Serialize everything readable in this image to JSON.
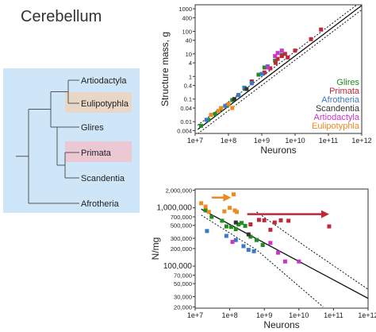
{
  "title": "Cerebellum",
  "tree": {
    "panel_color": "#cfe6f8",
    "taxa": [
      {
        "label": "Artiodactyla",
        "highlight": ""
      },
      {
        "label": "Eulipotyphla",
        "highlight": "#e8d6c6"
      },
      {
        "label": "Glires",
        "highlight": ""
      },
      {
        "label": "Primata",
        "highlight": "#ecc8d3"
      },
      {
        "label": "Scandentia",
        "highlight": ""
      },
      {
        "label": "Afrotheria",
        "highlight": ""
      }
    ]
  },
  "chart_data": [
    {
      "type": "scatter",
      "xlabel": "Neurons",
      "ylabel": "Structure mass, g",
      "x_scale": "log",
      "y_scale": "log",
      "xlim": [
        10000000.0,
        1000000000000.0
      ],
      "ylim": [
        0.003,
        1500
      ],
      "x_ticks": [
        {
          "value": 10000000.0,
          "label": "1e+7"
        },
        {
          "value": 100000000.0,
          "label": "1e+8"
        },
        {
          "value": 1000000000.0,
          "label": "1e+9"
        },
        {
          "value": 10000000000.0,
          "label": "1e+10"
        },
        {
          "value": 100000000000.0,
          "label": "1e+11"
        },
        {
          "value": 1000000000000.0,
          "label": "1e+12"
        }
      ],
      "y_ticks": [
        {
          "value": 1000,
          "label": "1000"
        },
        {
          "value": 400,
          "label": "400"
        },
        {
          "value": 100,
          "label": "100"
        },
        {
          "value": 40,
          "label": "40"
        },
        {
          "value": 10,
          "label": "10"
        },
        {
          "value": 4,
          "label": "4"
        },
        {
          "value": 1,
          "label": "1"
        },
        {
          "value": 0.4,
          "label": "0.4"
        },
        {
          "value": 0.1,
          "label": "0.1"
        },
        {
          "value": 0.04,
          "label": "0.04"
        },
        {
          "value": 0.01,
          "label": "0.01"
        },
        {
          "value": 0.004,
          "label": "0.004"
        }
      ],
      "legend_position": "right",
      "fit": {
        "points": [
          [
            12000000.0,
            0.0045
          ],
          [
            1000000000000.0,
            1400
          ]
        ],
        "band_offset_factor": 1.55
      },
      "series": [
        {
          "name": "Glires",
          "color": "#1e8e1e",
          "points": [
            [
              15000000.0,
              0.0065
            ],
            [
              25000000.0,
              0.012
            ],
            [
              40000000.0,
              0.022
            ],
            [
              60000000.0,
              0.035
            ],
            [
              90000000.0,
              0.05
            ],
            [
              130000000.0,
              0.09
            ],
            [
              200000000.0,
              0.15
            ],
            [
              300000000.0,
              0.3
            ],
            [
              500000000.0,
              0.6
            ],
            [
              800000000.0,
              1.2
            ],
            [
              1200000000.0,
              2.5
            ],
            [
              2500000000.0,
              5
            ],
            [
              4000000000.0,
              9
            ]
          ]
        },
        {
          "name": "Primata",
          "color": "#c0283a",
          "points": [
            [
              500000000.0,
              0.6
            ],
            [
              1200000000.0,
              1.5
            ],
            [
              1800000000.0,
              2.3
            ],
            [
              2600000000.0,
              4
            ],
            [
              3000000000.0,
              6
            ],
            [
              4000000000.0,
              8
            ],
            [
              5000000000.0,
              10
            ],
            [
              6000000000.0,
              7
            ],
            [
              10000000000.0,
              14
            ],
            [
              30000000000.0,
              45
            ],
            [
              60000000000.0,
              120
            ]
          ]
        },
        {
          "name": "Afrotheria",
          "color": "#3a78c8",
          "points": [
            [
              22000000.0,
              0.012
            ],
            [
              80000000.0,
              0.05
            ],
            [
              200000000.0,
              0.15
            ],
            [
              300000000.0,
              0.32
            ],
            [
              500000000.0,
              0.5
            ],
            [
              1000000000.0,
              1.3
            ],
            [
              1500000000.0,
              2.8
            ]
          ]
        },
        {
          "name": "Scandentia",
          "color": "#333333",
          "points": [
            [
              150000000.0,
              0.1
            ],
            [
              350000000.0,
              0.28
            ]
          ]
        },
        {
          "name": "Artiodactyla",
          "color": "#cc33cc",
          "points": [
            [
              1500000000.0,
              2.5
            ],
            [
              2500000000.0,
              8
            ],
            [
              3000000000.0,
              11
            ],
            [
              4000000000.0,
              14
            ]
          ]
        },
        {
          "name": "Eulipotyphla",
          "color": "#ee8a22",
          "points": [
            [
              30000000.0,
              0.02
            ],
            [
              50000000.0,
              0.03
            ],
            [
              60000000.0,
              0.04
            ],
            [
              100000000.0,
              0.06
            ],
            [
              130000000.0,
              0.04
            ]
          ]
        }
      ]
    },
    {
      "type": "scatter",
      "xlabel": "Neurons",
      "ylabel": "N/mg",
      "x_scale": "log",
      "y_scale": "log",
      "xlim": [
        10000000.0,
        1000000000000.0
      ],
      "ylim": [
        19000,
        2100000
      ],
      "x_ticks": [
        {
          "value": 10000000.0,
          "label": "1e+7"
        },
        {
          "value": 100000000.0,
          "label": "1e+8"
        },
        {
          "value": 1000000000.0,
          "label": "1e+9"
        },
        {
          "value": 10000000000.0,
          "label": "1e+10"
        },
        {
          "value": 100000000000.0,
          "label": "1e+11"
        },
        {
          "value": 1000000000000.0,
          "label": "1e+12"
        }
      ],
      "y_ticks": [
        {
          "value": 2000000,
          "label": "2,000,000",
          "big": false
        },
        {
          "value": 1000000,
          "label": "1,000,000",
          "big": true
        },
        {
          "value": 700000,
          "label": "700,000",
          "big": false
        },
        {
          "value": 500000,
          "label": "500,000",
          "big": false
        },
        {
          "value": 300000,
          "label": "300,000",
          "big": false
        },
        {
          "value": 200000,
          "label": "200,000",
          "big": false
        },
        {
          "value": 100000,
          "label": "100,000",
          "big": true
        },
        {
          "value": 70000,
          "label": "70,000",
          "big": false
        },
        {
          "value": 50000,
          "label": "50,000",
          "big": false
        },
        {
          "value": 30000,
          "label": "30,000",
          "big": false
        },
        {
          "value": 20000,
          "label": "20,000",
          "big": false
        }
      ],
      "fit": {
        "points": [
          [
            15000000.0,
            950000
          ],
          [
            1000000000000.0,
            28000
          ]
        ]
      },
      "band_upper": [
        [
          600000000.0,
          850000
        ],
        [
          15000000000.0,
          220000
        ],
        [
          1000000000000.0,
          40000
        ]
      ],
      "band_lower": [
        [
          15000000.0,
          750000
        ],
        [
          600000000.0,
          190000
        ],
        [
          50000000000.0,
          20000
        ]
      ],
      "arrows": [
        {
          "color": "#ee8a22",
          "from": [
            30000000.0,
            1500000
          ],
          "to": [
            110000000.0,
            1500000
          ]
        },
        {
          "color": "#c0283a",
          "from": [
            320000000.0,
            780000
          ],
          "to": [
            75000000000.0,
            780000
          ]
        }
      ],
      "series": [
        {
          "name": "Glires",
          "color": "#1e8e1e",
          "points": [
            [
              20000000.0,
              900000
            ],
            [
              30000000.0,
              700000
            ],
            [
              60000000.0,
              600000
            ],
            [
              80000000.0,
              480000
            ],
            [
              110000000.0,
              470000
            ],
            [
              150000000.0,
              430000
            ],
            [
              180000000.0,
              520000
            ],
            [
              220000000.0,
              550000
            ],
            [
              280000000.0,
              490000
            ],
            [
              400000000.0,
              320000
            ],
            [
              600000000.0,
              280000
            ],
            [
              900000000.0,
              230000
            ]
          ]
        },
        {
          "name": "Primata",
          "color": "#c0283a",
          "points": [
            [
              400000000.0,
              520000
            ],
            [
              700000000.0,
              620000
            ],
            [
              1000000000.0,
              610000
            ],
            [
              1500000000.0,
              420000
            ],
            [
              2000000000.0,
              560000
            ],
            [
              3000000000.0,
              610000
            ],
            [
              5000000000.0,
              600000
            ],
            [
              75000000000.0,
              480000
            ]
          ]
        },
        {
          "name": "Afrotheria",
          "color": "#3a78c8",
          "points": [
            [
              22000000.0,
              400000
            ],
            [
              80000000.0,
              330000
            ],
            [
              150000000.0,
              280000
            ],
            [
              250000000.0,
              220000
            ],
            [
              350000000.0,
              190000
            ],
            [
              500000000.0,
              180000
            ]
          ]
        },
        {
          "name": "Scandentia",
          "color": "#333333",
          "points": [
            [
              150000000.0,
              560000
            ],
            [
              350000000.0,
              350000
            ]
          ]
        },
        {
          "name": "Artiodactyla",
          "color": "#cc33cc",
          "points": [
            [
              120000000.0,
              260000
            ],
            [
              1500000000.0,
              250000
            ],
            [
              2500000000.0,
              170000
            ],
            [
              4000000000.0,
              120000
            ],
            [
              10000000000.0,
              120000
            ]
          ]
        },
        {
          "name": "Eulipotyphla",
          "color": "#ee8a22",
          "points": [
            [
              15000000.0,
              1200000
            ],
            [
              20000000.0,
              1050000
            ],
            [
              25000000.0,
              850000
            ],
            [
              70000000.0,
              870000
            ],
            [
              100000000.0,
              1000000
            ],
            [
              130000000.0,
              1700000
            ],
            [
              140000000.0,
              900000
            ],
            [
              160000000.0,
              850000
            ]
          ]
        }
      ]
    }
  ]
}
